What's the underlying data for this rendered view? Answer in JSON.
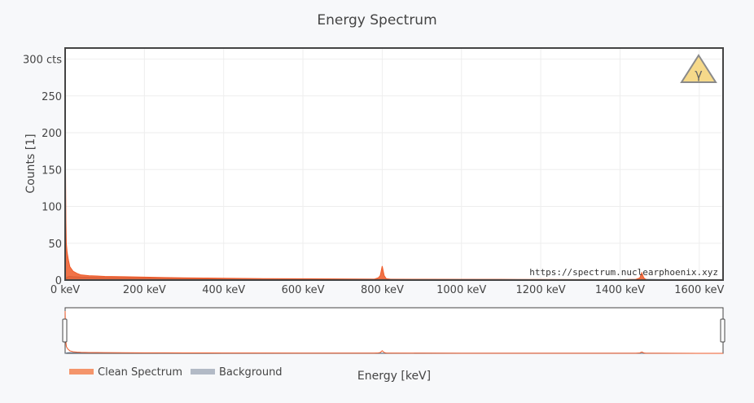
{
  "chart_data": {
    "type": "area",
    "title": "Energy Spectrum",
    "xlabel": "Energy [keV]",
    "ylabel": "Counts [1]",
    "xlim": [
      0,
      1660
    ],
    "ylim": [
      0,
      315
    ],
    "x_ticks": [
      0,
      200,
      400,
      600,
      800,
      1000,
      1200,
      1400,
      1600
    ],
    "x_tick_labels": [
      "0 keV",
      "200 keV",
      "400 keV",
      "600 keV",
      "800 keV",
      "1000 keV",
      "1200 keV",
      "1400 keV",
      "1600 keV"
    ],
    "y_ticks": [
      0,
      50,
      100,
      150,
      200,
      250,
      300
    ],
    "y_tick_labels": [
      "0",
      "50",
      "100",
      "150",
      "200",
      "250",
      "300 cts"
    ],
    "grid": true,
    "legend_position": "bottom-left",
    "series": [
      {
        "name": "Clean Spectrum",
        "color": "#ef5a28",
        "legend_color": "#f4956b",
        "x": [
          0,
          1,
          2,
          3,
          5,
          8,
          12,
          20,
          30,
          40,
          60,
          80,
          100,
          150,
          200,
          250,
          300,
          350,
          400,
          500,
          600,
          700,
          780,
          790,
          795,
          800,
          805,
          810,
          820,
          900,
          1000,
          1100,
          1200,
          1300,
          1400,
          1440,
          1450,
          1455,
          1460,
          1465,
          1470,
          1500,
          1600,
          1660
        ],
        "y": [
          305,
          150,
          80,
          50,
          38,
          28,
          18,
          12,
          9,
          7,
          6,
          5.5,
          5,
          4.5,
          4,
          3.5,
          3,
          2.8,
          2.5,
          2,
          1.8,
          1.5,
          1.3,
          3,
          6,
          19,
          6,
          2,
          1.2,
          1.1,
          1,
          0.9,
          0.8,
          0.7,
          0.6,
          1,
          3,
          10,
          3,
          1,
          0.5,
          0.4,
          0.3,
          0.2
        ]
      },
      {
        "name": "Background",
        "color": "#6b7a90",
        "legend_color": "#b2bac6",
        "x": [
          0,
          5,
          10,
          20,
          40,
          80,
          150,
          250,
          350,
          500,
          700,
          800,
          1000,
          1200,
          1400,
          1460,
          1600,
          1660
        ],
        "y": [
          0,
          4,
          5,
          4.5,
          4,
          3.5,
          3,
          2.5,
          2,
          1.6,
          1.2,
          1.3,
          0.8,
          0.6,
          0.4,
          0.9,
          0.2,
          0.1
        ]
      }
    ],
    "watermark": "https://spectrum.nuclearphoenix.xyz",
    "logo": "radiation-gamma-icon",
    "logo_text": "γ"
  }
}
